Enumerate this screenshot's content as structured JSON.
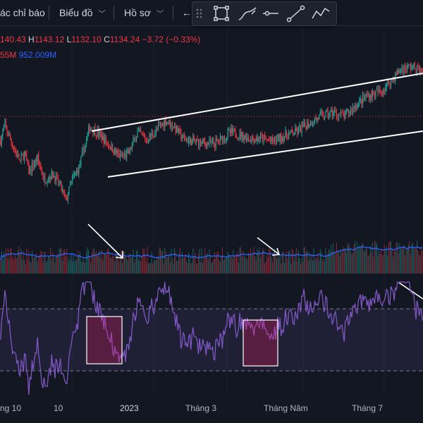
{
  "toolbar": {
    "indicators_label": "ác chỉ báo",
    "chart_label": "Biểu đồ",
    "profile_label": "Hồ sơ",
    "back_label": "←"
  },
  "drawing_tools": {
    "tools": [
      "drag-handle",
      "rectangle-tool",
      "brush-tool",
      "horizontal-line-tool",
      "trend-line-tool",
      "path-tool"
    ]
  },
  "legend": {
    "open": "140.43",
    "high_prefix": "H",
    "high": "1143.12",
    "low_prefix": "L",
    "low": "1132.10",
    "close_prefix": "C",
    "close": "1134.24",
    "change": "−3.72 (−0.33%)",
    "volume_a": "55M",
    "volume_b": "952.009M"
  },
  "time_axis": [
    "ng 10",
    "10",
    "2023",
    "Tháng 3",
    "Tháng Năm",
    "Tháng 7"
  ],
  "colors": {
    "background": "#131722",
    "up": "#26a69a",
    "down": "#f23645",
    "volume_ma": "#2962ff",
    "rsi_line": "#7e57c2",
    "rsi_band": "#7e57c2",
    "annotation": "#ffffff",
    "highlight_box": "#e91e63"
  },
  "chart_data": {
    "type": "candlestick",
    "price_anchors": [
      [
        0,
        1060
      ],
      [
        4,
        1082
      ],
      [
        12,
        1048
      ],
      [
        18,
        1028
      ],
      [
        22,
        1040
      ],
      [
        26,
        1012
      ],
      [
        34,
        1032
      ],
      [
        40,
        1000
      ],
      [
        48,
        1008
      ],
      [
        55,
        990
      ],
      [
        60,
        968
      ],
      [
        66,
        1000
      ],
      [
        72,
        1018
      ],
      [
        77,
        1048
      ],
      [
        82,
        1080
      ],
      [
        90,
        1070
      ],
      [
        100,
        1052
      ],
      [
        110,
        1034
      ],
      [
        118,
        1040
      ],
      [
        126,
        1072
      ],
      [
        134,
        1060
      ],
      [
        144,
        1076
      ],
      [
        152,
        1090
      ],
      [
        160,
        1080
      ],
      [
        168,
        1062
      ],
      [
        176,
        1058
      ],
      [
        186,
        1056
      ],
      [
        196,
        1054
      ],
      [
        205,
        1064
      ],
      [
        212,
        1072
      ],
      [
        220,
        1068
      ],
      [
        230,
        1062
      ],
      [
        240,
        1062
      ],
      [
        250,
        1058
      ],
      [
        260,
        1066
      ],
      [
        272,
        1072
      ],
      [
        282,
        1084
      ],
      [
        294,
        1096
      ],
      [
        306,
        1102
      ],
      [
        316,
        1096
      ],
      [
        326,
        1112
      ],
      [
        336,
        1126
      ],
      [
        350,
        1134
      ],
      [
        360,
        1152
      ],
      [
        368,
        1168
      ],
      [
        378,
        1172
      ],
      [
        388,
        1162
      ]
    ],
    "price_range": [
      930,
      1230
    ],
    "rsi_range": [
      0,
      100
    ],
    "rsi_bands": [
      30,
      70
    ]
  }
}
